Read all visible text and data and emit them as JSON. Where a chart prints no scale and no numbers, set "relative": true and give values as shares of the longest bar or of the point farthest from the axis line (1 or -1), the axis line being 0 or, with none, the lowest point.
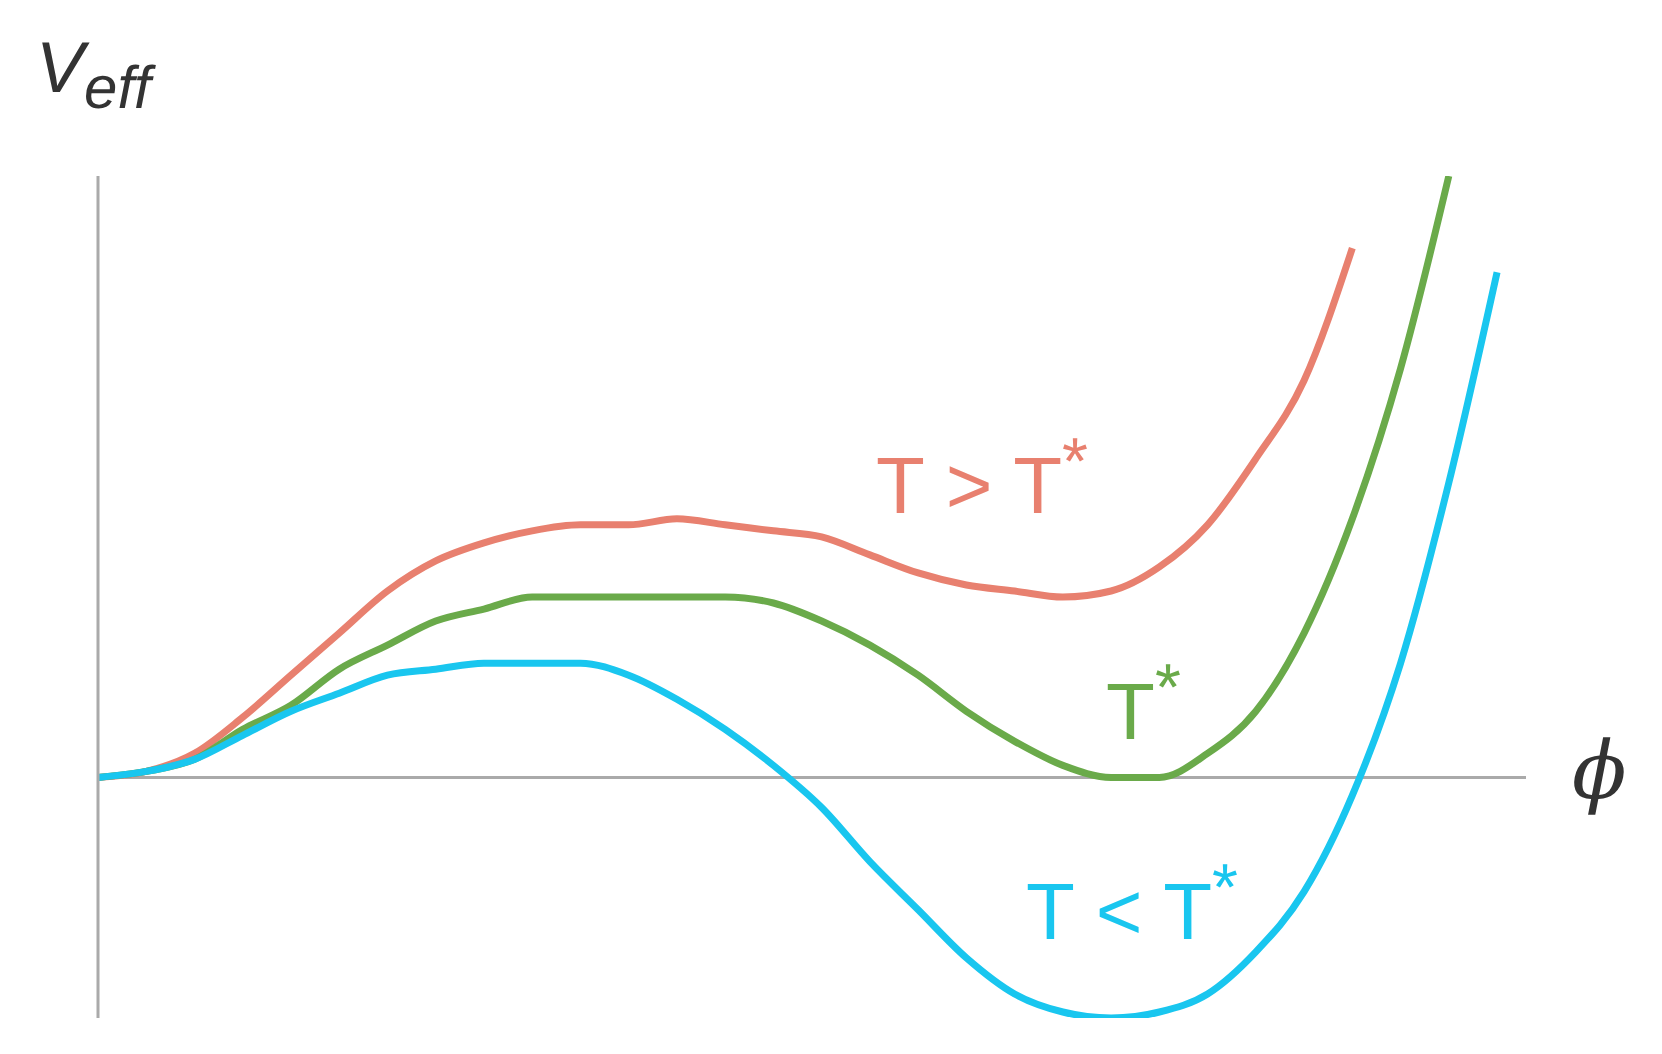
{
  "chart_data": {
    "type": "line",
    "relative": true,
    "xlabel": "ϕ",
    "ylabel": "V$_{eff}$",
    "categories": [
      null,
      null,
      null,
      null,
      null,
      null,
      null,
      null,
      null,
      null,
      null,
      null,
      null,
      null,
      null,
      null,
      null,
      null,
      null,
      null,
      null,
      null,
      null,
      null,
      null,
      null,
      null,
      null,
      null,
      null
    ],
    "marker": "none",
    "line_style": "solid",
    "series": [
      {
        "name": "T > T$^{*}$",
        "color": "#e8806f",
        "values": [
          0,
          0.01,
          0.04,
          0.1,
          0.17,
          0.24,
          0.31,
          0.36,
          0.39,
          0.41,
          0.42,
          0.42,
          0.43,
          0.42,
          0.41,
          0.4,
          0.37,
          0.34,
          0.32,
          0.31,
          0.3,
          0.31,
          0.35,
          0.42,
          0.53,
          0.66,
          0.88,
          null,
          null,
          null
        ]
      },
      {
        "name": "T$^{*}$",
        "color": "#6aaa4a",
        "values": [
          0,
          0.01,
          0.03,
          0.08,
          0.12,
          0.18,
          0.22,
          0.26,
          0.28,
          0.3,
          0.3,
          0.3,
          0.3,
          0.3,
          0.29,
          0.26,
          0.22,
          0.17,
          0.11,
          0.06,
          0.02,
          0,
          0,
          0.04,
          0.11,
          0.24,
          0.43,
          0.68,
          1,
          null
        ]
      },
      {
        "name": "T < T$^{*}$",
        "color": "#19c6ef",
        "values": [
          0,
          0.01,
          0.03,
          0.07,
          0.11,
          0.14,
          0.17,
          0.18,
          0.19,
          0.19,
          0.19,
          0.17,
          0.13,
          0.08,
          0.02,
          -0.05,
          -0.14,
          -0.22,
          -0.3,
          -0.36,
          -0.39,
          -0.4,
          -0.39,
          -0.36,
          -0.29,
          -0.19,
          -0.03,
          0.19,
          0.49,
          0.84
        ]
      }
    ]
  }
}
